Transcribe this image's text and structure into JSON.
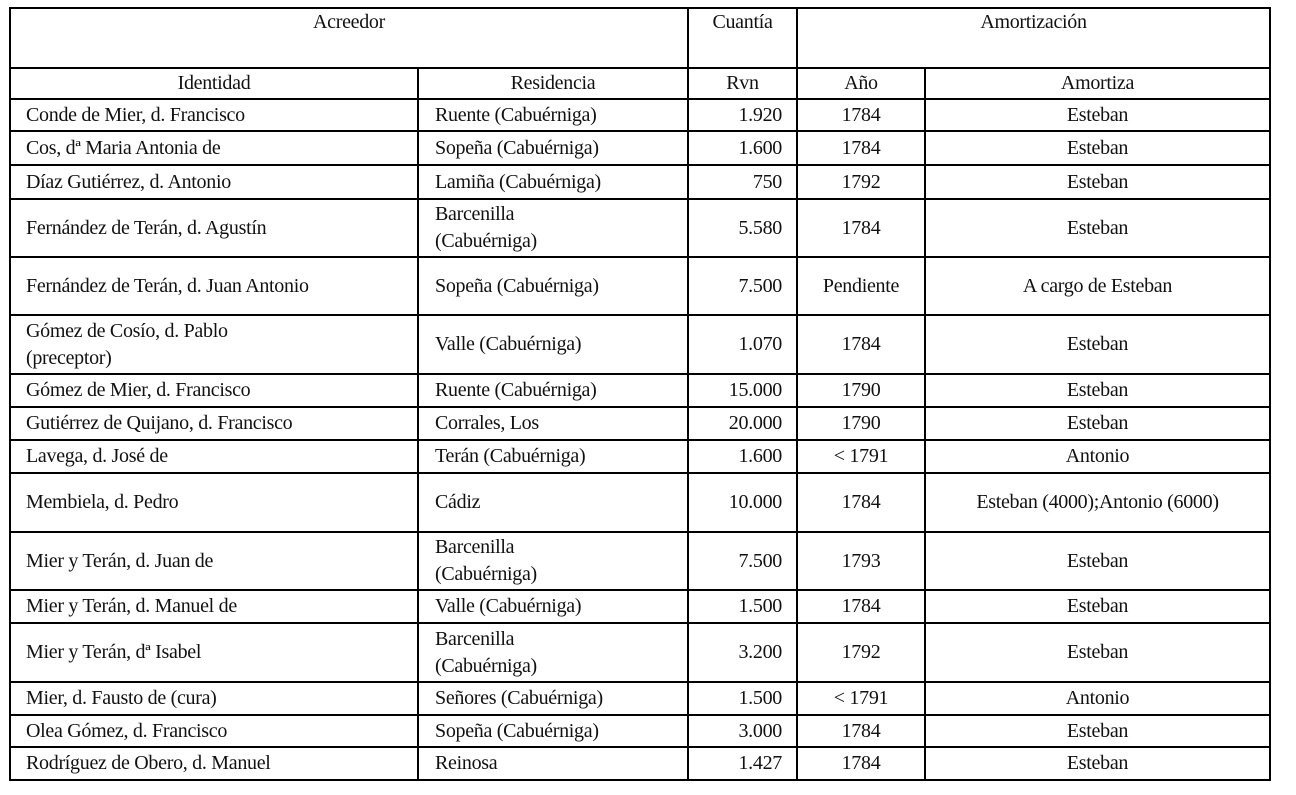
{
  "header": {
    "acreedor": "Acreedor",
    "cuantia": "Cuantía",
    "amortizacion": "Amortización",
    "identidad": "Identidad",
    "residencia": "Residencia",
    "rvn": "Rvn",
    "anio": "Año",
    "amortiza": "Amortiza"
  },
  "rows": [
    {
      "identidad": "Conde de Mier, d. Francisco",
      "residencia": "Ruente (Cabuérniga)",
      "rvn": "1.920",
      "anio": "1784",
      "amortiza": "Esteban"
    },
    {
      "identidad": "Cos, dª Maria Antonia de",
      "residencia": "Sopeña (Cabuérniga)",
      "rvn": "1.600",
      "anio": "1784",
      "amortiza": "Esteban"
    },
    {
      "identidad": "Díaz Gutiérrez, d. Antonio",
      "residencia": "Lamiña (Cabuérniga)",
      "rvn": "750",
      "anio": "1792",
      "amortiza": "Esteban"
    },
    {
      "identidad": "Fernández de Terán, d. Agustín",
      "residencia": "Barcenilla (Cabuérniga)",
      "rvn": "5.580",
      "anio": "1784",
      "amortiza": "Esteban"
    },
    {
      "identidad": "Fernández de Terán, d. Juan Antonio",
      "residencia": "Sopeña (Cabuérniga)",
      "rvn": "7.500",
      "anio": "Pendiente",
      "amortiza": "A cargo de Esteban"
    },
    {
      "identidad": "Gómez de Cosío, d. Pablo (preceptor)",
      "residencia": "Valle (Cabuérniga)",
      "rvn": "1.070",
      "anio": "1784",
      "amortiza": "Esteban"
    },
    {
      "identidad": "Gómez de Mier, d. Francisco",
      "residencia": "Ruente (Cabuérniga)",
      "rvn": "15.000",
      "anio": "1790",
      "amortiza": "Esteban"
    },
    {
      "identidad": "Gutiérrez de Quijano, d. Francisco",
      "residencia": "Corrales, Los",
      "rvn": "20.000",
      "anio": "1790",
      "amortiza": "Esteban"
    },
    {
      "identidad": "Lavega, d. José de",
      "residencia": "Terán (Cabuérniga)",
      "rvn": "1.600",
      "anio": "< 1791",
      "amortiza": "Antonio"
    },
    {
      "identidad": "Membiela, d. Pedro",
      "residencia": "Cádiz",
      "rvn": "10.000",
      "anio": "1784",
      "amortiza": "Esteban (4000);Antonio (6000)"
    },
    {
      "identidad": "Mier y Terán, d. Juan de",
      "residencia": "Barcenilla (Cabuérniga)",
      "rvn": "7.500",
      "anio": "1793",
      "amortiza": "Esteban"
    },
    {
      "identidad": "Mier y Terán, d. Manuel de",
      "residencia": "Valle (Cabuérniga)",
      "rvn": "1.500",
      "anio": "1784",
      "amortiza": "Esteban"
    },
    {
      "identidad": "Mier y Terán, dª Isabel",
      "residencia": "Barcenilla (Cabuérniga)",
      "rvn": "3.200",
      "anio": "1792",
      "amortiza": "Esteban"
    },
    {
      "identidad": "Mier, d. Fausto de (cura)",
      "residencia": "Señores (Cabuérniga)",
      "rvn": "1.500",
      "anio": "< 1791",
      "amortiza": "Antonio"
    },
    {
      "identidad": "Olea Gómez, d. Francisco",
      "residencia": "Sopeña (Cabuérniga)",
      "rvn": "3.000",
      "anio": "1784",
      "amortiza": "Esteban"
    },
    {
      "identidad": "Rodríguez de Obero, d. Manuel",
      "residencia": "Reinosa",
      "rvn": "1.427",
      "anio": "1784",
      "amortiza": "Esteban"
    }
  ]
}
